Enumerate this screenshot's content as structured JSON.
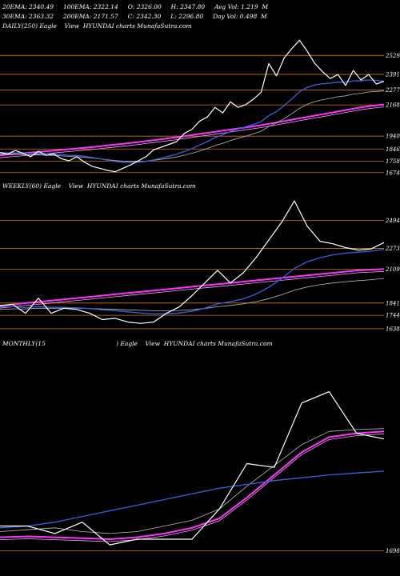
{
  "header": {
    "line1": "20EMA: 2340.49     100EMA: 2322.14     O: 2326.00     H: 2347.80     Avg Vol: 1.219  M",
    "line2": "30EMA: 2363.32     200EMA: 2171.57     C: 2342.30     L: 2296.80     Day Vol: 0.498  M"
  },
  "colors": {
    "price": "#ffffff",
    "ema_fast": "#3a5fe0",
    "ema_slow": "#ff33ff",
    "level": "#c8780a",
    "ema_grey": "#bbbbbb"
  },
  "chart_data": [
    {
      "type": "line",
      "title": "DAILY(250) Eagle    View  HYUNDAI charts MunafaSutra.com",
      "levels": [
        "2529",
        "2391",
        "2277",
        "2168",
        "1940",
        "1846",
        "1758",
        "1674"
      ],
      "ylim": [
        1620,
        2700
      ],
      "x": [
        0,
        5,
        10,
        15,
        20,
        25,
        30,
        35,
        40,
        45,
        50,
        55,
        60,
        65,
        70,
        75,
        80,
        85,
        90,
        95,
        100,
        105,
        110,
        115,
        120,
        125,
        130,
        135,
        140,
        145,
        150,
        155,
        160,
        165,
        170,
        175,
        180,
        185,
        190,
        195,
        200,
        205,
        210,
        215,
        220,
        225,
        230,
        235,
        240,
        245,
        250
      ],
      "series": [
        {
          "role": "price",
          "values": [
            1820,
            1810,
            1835,
            1815,
            1790,
            1830,
            1800,
            1810,
            1775,
            1760,
            1790,
            1750,
            1720,
            1705,
            1690,
            1680,
            1705,
            1730,
            1760,
            1790,
            1840,
            1860,
            1880,
            1900,
            1960,
            1990,
            2050,
            2080,
            2150,
            2110,
            2190,
            2150,
            2170,
            2210,
            2260,
            2470,
            2380,
            2510,
            2580,
            2640,
            2560,
            2470,
            2410,
            2360,
            2390,
            2310,
            2420,
            2350,
            2390,
            2320,
            2340
          ]
        },
        {
          "role": "ema_fast",
          "values": [
            1820,
            1818,
            1818,
            1817,
            1813,
            1814,
            1811,
            1811,
            1806,
            1800,
            1799,
            1793,
            1784,
            1775,
            1765,
            1755,
            1750,
            1748,
            1750,
            1756,
            1767,
            1780,
            1794,
            1808,
            1828,
            1849,
            1875,
            1900,
            1930,
            1950,
            1975,
            1992,
            2008,
            2026,
            2046,
            2090,
            2120,
            2163,
            2212,
            2264,
            2296,
            2314,
            2323,
            2327,
            2334,
            2333,
            2344,
            2345,
            2350,
            2347,
            2340
          ]
        },
        {
          "role": "ema_grey",
          "values": [
            1810,
            1808,
            1808,
            1806,
            1803,
            1803,
            1801,
            1800,
            1796,
            1792,
            1790,
            1786,
            1780,
            1774,
            1768,
            1762,
            1758,
            1756,
            1756,
            1758,
            1764,
            1771,
            1779,
            1788,
            1801,
            1815,
            1832,
            1850,
            1871,
            1888,
            1908,
            1924,
            1940,
            1957,
            1976,
            2010,
            2036,
            2068,
            2104,
            2143,
            2172,
            2192,
            2206,
            2216,
            2228,
            2234,
            2247,
            2253,
            2262,
            2266,
            2270
          ]
        },
        {
          "role": "ema_slow",
          "values": [
            1800,
            1805,
            1810,
            1815,
            1820,
            1825,
            1830,
            1835,
            1840,
            1845,
            1850,
            1855,
            1860,
            1866,
            1872,
            1878,
            1884,
            1890,
            1897,
            1904,
            1911,
            1918,
            1925,
            1932,
            1940,
            1948,
            1956,
            1964,
            1972,
            1980,
            1988,
            1996,
            2004,
            2012,
            2020,
            2030,
            2040,
            2050,
            2060,
            2070,
            2080,
            2090,
            2100,
            2110,
            2120,
            2130,
            2140,
            2150,
            2158,
            2165,
            2171
          ]
        }
      ]
    },
    {
      "type": "line",
      "title": "WEEKLY(60) Eagle    View  HYUNDAI charts MunafaSutra.com",
      "levels": [
        "2494",
        "2273",
        "2109",
        "1841",
        "1744",
        "1638"
      ],
      "ylim": [
        1580,
        2720
      ],
      "x": [
        0,
        5,
        10,
        15,
        20,
        25,
        30,
        35,
        40,
        45,
        50,
        55,
        60,
        65,
        70,
        75,
        80,
        85,
        90,
        95,
        100,
        105,
        110,
        115,
        120,
        125,
        130,
        135,
        140,
        145,
        150
      ],
      "series": [
        {
          "role": "price",
          "values": [
            1820,
            1830,
            1760,
            1880,
            1760,
            1800,
            1790,
            1760,
            1710,
            1720,
            1690,
            1680,
            1690,
            1760,
            1810,
            1900,
            2000,
            2100,
            2000,
            2080,
            2200,
            2340,
            2480,
            2650,
            2450,
            2330,
            2310,
            2280,
            2260,
            2270,
            2320
          ]
        },
        {
          "role": "ema_fast",
          "values": [
            1810,
            1812,
            1805,
            1812,
            1808,
            1806,
            1803,
            1797,
            1787,
            1780,
            1771,
            1762,
            1755,
            1756,
            1762,
            1776,
            1800,
            1834,
            1852,
            1874,
            1912,
            1966,
            2034,
            2116,
            2168,
            2200,
            2222,
            2236,
            2244,
            2252,
            2265
          ]
        },
        {
          "role": "ema_grey",
          "values": [
            1790,
            1795,
            1795,
            1800,
            1800,
            1800,
            1800,
            1798,
            1794,
            1791,
            1787,
            1783,
            1780,
            1780,
            1782,
            1788,
            1798,
            1812,
            1822,
            1834,
            1852,
            1876,
            1906,
            1942,
            1968,
            1986,
            2000,
            2010,
            2018,
            2026,
            2036
          ]
        },
        {
          "role": "ema_slow",
          "values": [
            1820,
            1830,
            1840,
            1850,
            1860,
            1870,
            1880,
            1890,
            1900,
            1910,
            1920,
            1930,
            1940,
            1950,
            1960,
            1970,
            1980,
            1990,
            2000,
            2010,
            2020,
            2030,
            2040,
            2050,
            2060,
            2070,
            2080,
            2090,
            2100,
            2105,
            2110
          ]
        }
      ]
    },
    {
      "type": "line",
      "title": "MONTHLY(15                                     ) Eagle    View  HYUNDAI charts MunafaSutra.com",
      "levels": [
        "1698"
      ],
      "ylim": [
        1650,
        2750
      ],
      "x": [
        0,
        1,
        2,
        3,
        4,
        5,
        6,
        7,
        8,
        9,
        10,
        11,
        12,
        13,
        14
      ],
      "series": [
        {
          "role": "price",
          "values": [
            1830,
            1830,
            1790,
            1850,
            1730,
            1760,
            1760,
            1760,
            1920,
            2160,
            2140,
            2480,
            2540,
            2320,
            2290
          ]
        },
        {
          "role": "ema_fast",
          "values": [
            1820,
            1830,
            1850,
            1880,
            1910,
            1940,
            1970,
            2000,
            2030,
            2050,
            2070,
            2085,
            2100,
            2110,
            2120
          ]
        },
        {
          "role": "ema_grey",
          "values": [
            1800,
            1810,
            1820,
            1800,
            1790,
            1800,
            1830,
            1860,
            1920,
            2040,
            2150,
            2260,
            2330,
            2340,
            2345
          ]
        },
        {
          "role": "ema_slow",
          "values": [
            1770,
            1775,
            1770,
            1765,
            1760,
            1770,
            1790,
            1820,
            1870,
            1980,
            2100,
            2220,
            2300,
            2320,
            2330
          ]
        }
      ]
    }
  ]
}
